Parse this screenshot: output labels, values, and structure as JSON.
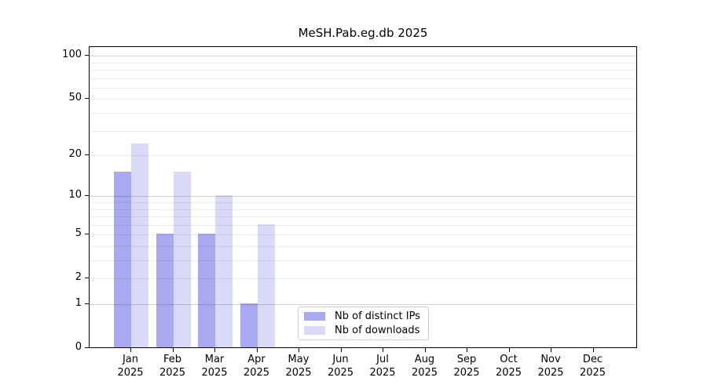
{
  "chart_data": {
    "type": "bar",
    "title": "MeSH.Pab.eg.db 2025",
    "categories": [
      "Jan",
      "Feb",
      "Mar",
      "Apr",
      "May",
      "Jun",
      "Jul",
      "Aug",
      "Sep",
      "Oct",
      "Nov",
      "Dec"
    ],
    "category_year": "2025",
    "series": [
      {
        "name": "Nb of distinct IPs",
        "color": "#a9a9f1",
        "values": [
          15,
          5,
          5,
          1,
          0,
          0,
          0,
          0,
          0,
          0,
          0,
          0
        ]
      },
      {
        "name": "Nb of downloads",
        "color": "#d9d9f8",
        "values": [
          24,
          15,
          10,
          6,
          0,
          0,
          0,
          0,
          0,
          0,
          0,
          0
        ]
      }
    ],
    "y_axis": {
      "scale": "log10(value+1)",
      "tick_values": [
        0,
        1,
        2,
        5,
        10,
        20,
        50,
        100
      ],
      "minor_gridlines": [
        2,
        3,
        4,
        5,
        6,
        7,
        8,
        9,
        20,
        30,
        40,
        50,
        60,
        70,
        80,
        90
      ],
      "major_gridlines": [
        1,
        10,
        100
      ],
      "range": [
        0,
        100
      ]
    },
    "grid": true,
    "legend_position": "lower center"
  },
  "colors": {
    "axis": "#000000",
    "minor_grid": "#ececec",
    "major_grid": "#d6d6d6",
    "legend_border": "#cccccc",
    "background": "#ffffff"
  }
}
